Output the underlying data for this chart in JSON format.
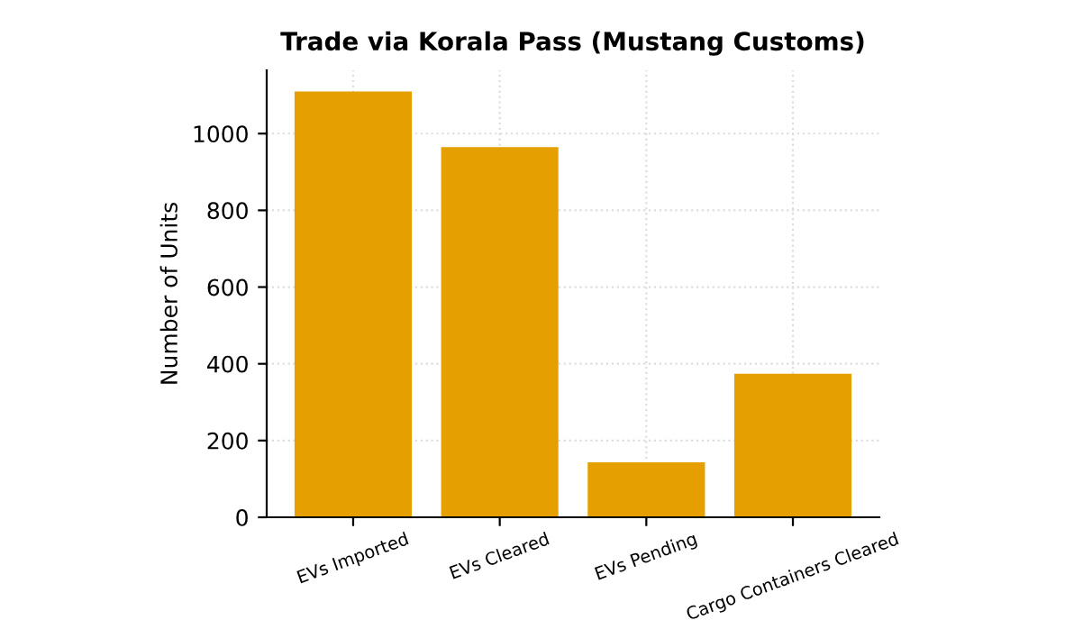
{
  "chart_data": {
    "type": "bar",
    "title": "Trade via Korala Pass (Mustang Customs)",
    "ylabel": "Number of Units",
    "categories": [
      "EVs Imported",
      "EVs Cleared",
      "EVs Pending",
      "Cargo Containers Cleared"
    ],
    "values": [
      1110,
      965,
      143,
      374
    ],
    "color": "#e69f00",
    "ylim": [
      0,
      1165
    ],
    "yticks": [
      0,
      200,
      400,
      600,
      800,
      1000
    ],
    "grid": true
  }
}
